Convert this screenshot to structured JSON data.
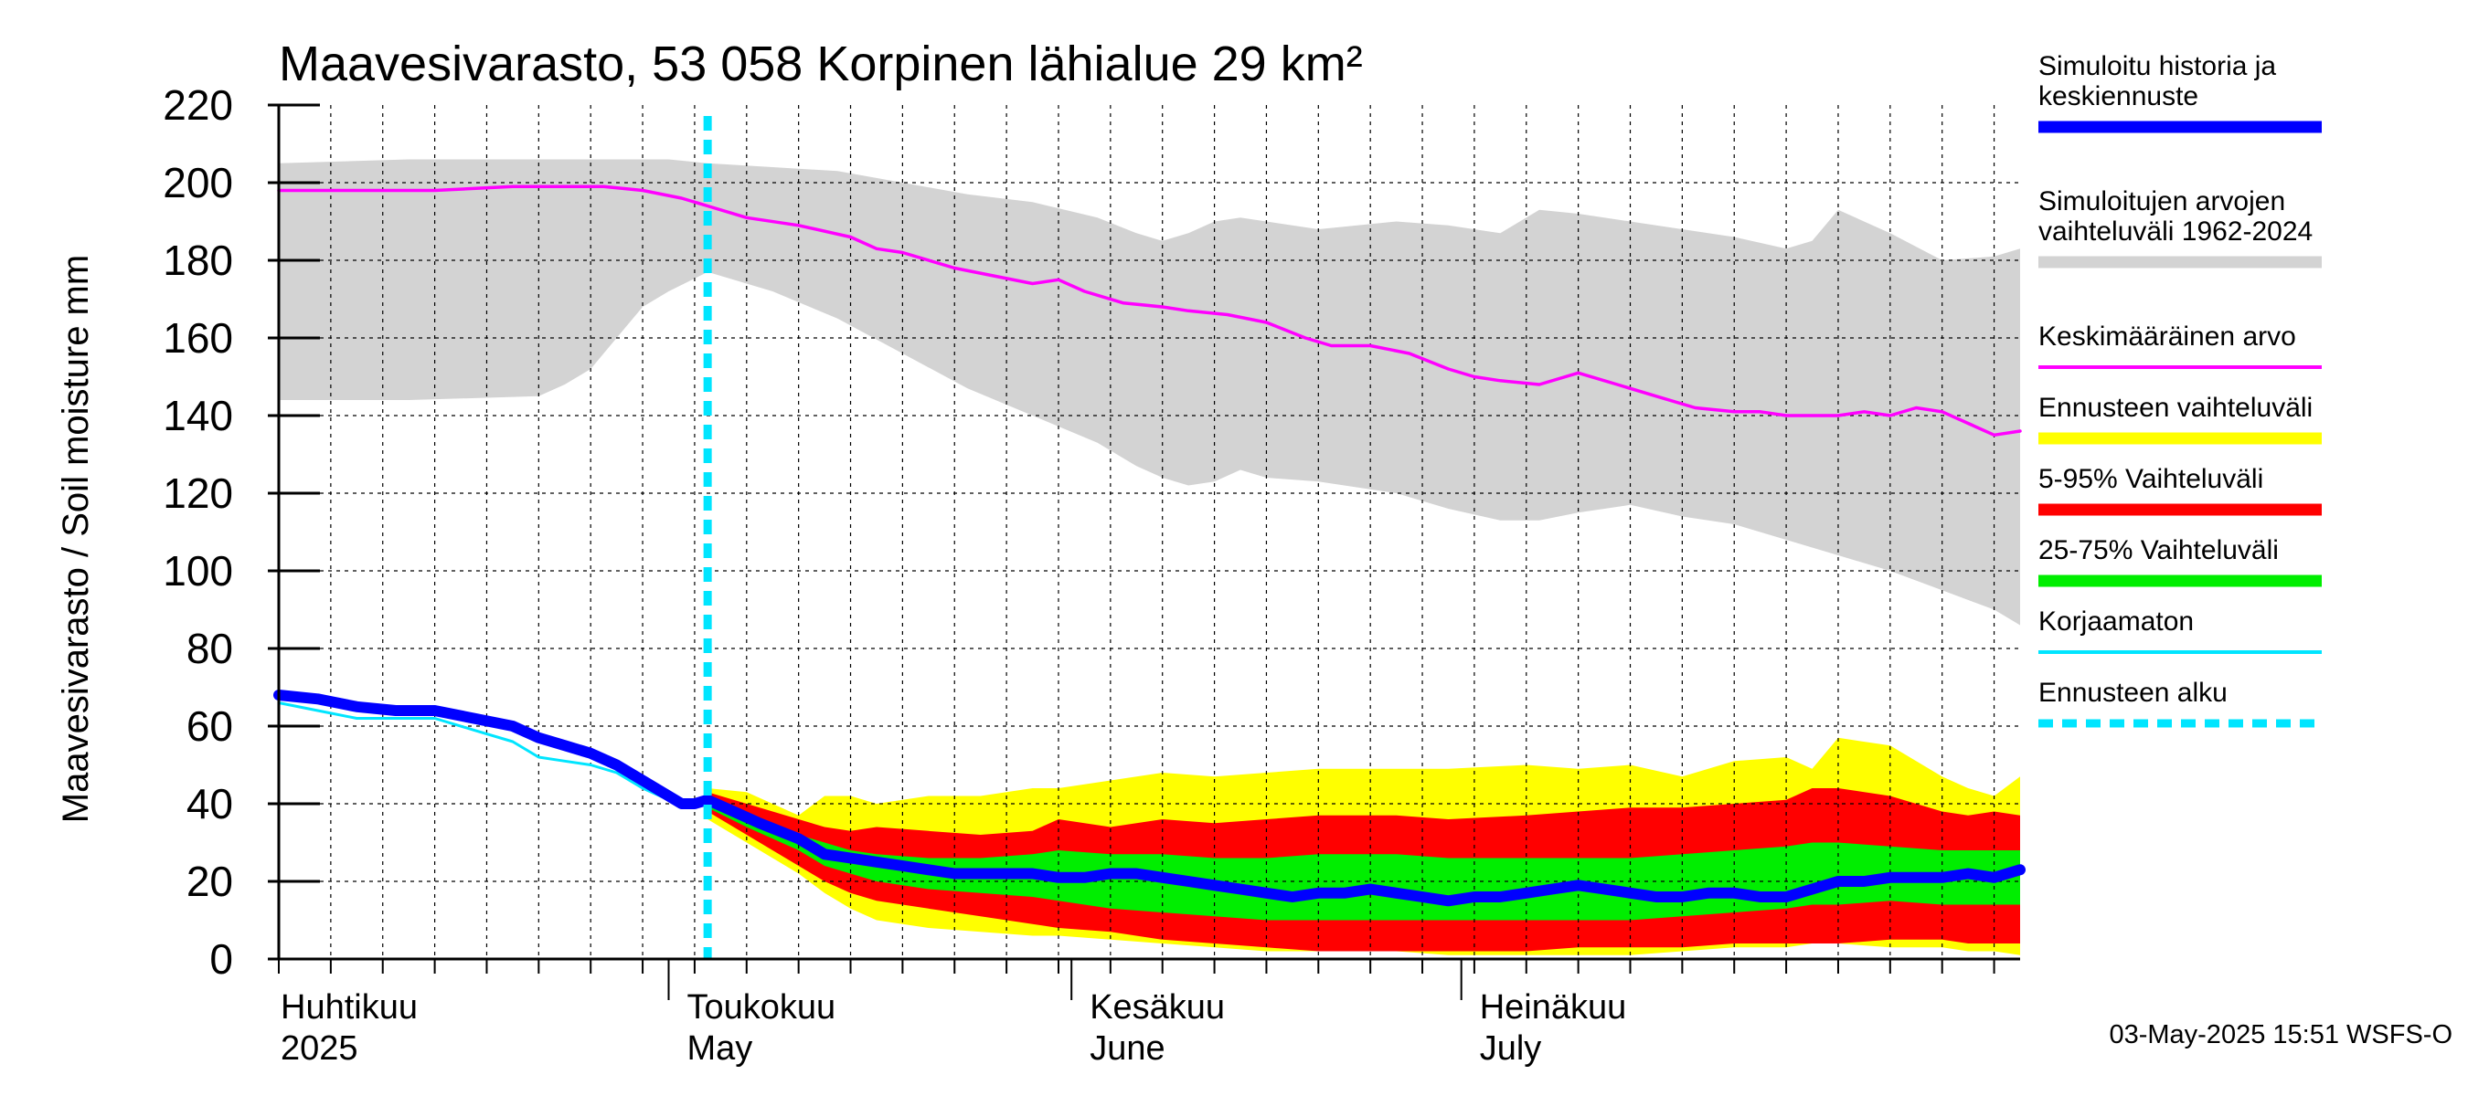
{
  "chart_data": {
    "type": "area",
    "title": "Maavesivarasto, 53 058 Korpinen lähialue 29 km²",
    "ylabel": "Maavesivarasto / Soil moisture   mm",
    "xlabel": "",
    "ylim": [
      0,
      220
    ],
    "yticks": [
      "0",
      "20",
      "40",
      "60",
      "80",
      "100",
      "120",
      "140",
      "160",
      "180",
      "200",
      "220"
    ],
    "xlim_days": [
      0,
      134
    ],
    "month_labels": [
      {
        "fi": "Huhtikuu",
        "en": "2025",
        "start_day": 0
      },
      {
        "fi": "Toukokuu",
        "en": "May",
        "start_day": 30
      },
      {
        "fi": "Kesäkuu",
        "en": "June",
        "start_day": 61
      },
      {
        "fi": "Heinäkuu",
        "en": "July",
        "start_day": 91
      }
    ],
    "forecast_start_day": 33,
    "series": [
      {
        "name": "Simuloitujen arvojen vaihteluväli 1962-2024",
        "kind": "band",
        "color": "#d3d3d3",
        "x": [
          0,
          10,
          20,
          22,
          24,
          26,
          28,
          30,
          33,
          38,
          43,
          48,
          53,
          58,
          63,
          66,
          68,
          70,
          72,
          74,
          76,
          80,
          86,
          90,
          94,
          97,
          100,
          104,
          108,
          112,
          116,
          118,
          120,
          124,
          128,
          132,
          134
        ],
        "upper": [
          205,
          206,
          206,
          206,
          206,
          206,
          206,
          206,
          205,
          204,
          203,
          200,
          197,
          195,
          191,
          187,
          185,
          187,
          190,
          191,
          190,
          188,
          190,
          189,
          187,
          193,
          192,
          190,
          188,
          186,
          183,
          185,
          193,
          187,
          180,
          181,
          183
        ],
        "lower": [
          144,
          144,
          145,
          148,
          152,
          160,
          168,
          172,
          177,
          172,
          165,
          156,
          147,
          140,
          133,
          127,
          124,
          122,
          123,
          126,
          124,
          123,
          120,
          116,
          113,
          113,
          115,
          117,
          114,
          112,
          108,
          106,
          104,
          100,
          95,
          90,
          86
        ]
      },
      {
        "name": "Ennusteen vaihteluväli",
        "kind": "band",
        "color": "#ffff00",
        "x": [
          33,
          36,
          40,
          42,
          44,
          46,
          50,
          54,
          58,
          60,
          64,
          68,
          72,
          76,
          80,
          86,
          90,
          96,
          100,
          104,
          108,
          112,
          116,
          118,
          120,
          124,
          128,
          130,
          132,
          134
        ],
        "upper": [
          44,
          43,
          37,
          42,
          42,
          40,
          42,
          42,
          44,
          44,
          46,
          48,
          47,
          48,
          49,
          49,
          49,
          50,
          49,
          50,
          47,
          51,
          52,
          49,
          57,
          55,
          47,
          44,
          42,
          47
        ],
        "lower": [
          36,
          30,
          22,
          17,
          13,
          10,
          8,
          7,
          6,
          6,
          5,
          4,
          3,
          2,
          2,
          2,
          1,
          1,
          1,
          1,
          2,
          3,
          3,
          4,
          4,
          3,
          3,
          2,
          2,
          1
        ]
      },
      {
        "name": "5-95% Vaihteluväli",
        "kind": "band",
        "color": "#ff0000",
        "x": [
          33,
          36,
          40,
          42,
          44,
          46,
          50,
          54,
          58,
          60,
          64,
          68,
          72,
          76,
          80,
          86,
          90,
          96,
          100,
          104,
          108,
          112,
          116,
          118,
          120,
          124,
          128,
          130,
          132,
          134
        ],
        "upper": [
          43,
          40,
          36,
          34,
          33,
          34,
          33,
          32,
          33,
          36,
          34,
          36,
          35,
          36,
          37,
          37,
          36,
          37,
          38,
          39,
          39,
          40,
          41,
          44,
          44,
          42,
          38,
          37,
          38,
          37
        ],
        "lower": [
          38,
          32,
          24,
          20,
          17,
          15,
          13,
          11,
          9,
          8,
          7,
          5,
          4,
          3,
          2,
          2,
          2,
          2,
          3,
          3,
          3,
          4,
          4,
          4,
          4,
          5,
          5,
          4,
          4,
          4
        ]
      },
      {
        "name": "25-75% Vaihteluväli",
        "kind": "band",
        "color": "#00ee00",
        "x": [
          33,
          36,
          40,
          42,
          44,
          46,
          50,
          54,
          58,
          60,
          64,
          68,
          72,
          76,
          80,
          86,
          90,
          96,
          100,
          104,
          108,
          112,
          116,
          118,
          120,
          124,
          128,
          130,
          132,
          134
        ],
        "upper": [
          41,
          37,
          32,
          30,
          28,
          27,
          26,
          26,
          27,
          28,
          27,
          27,
          26,
          26,
          27,
          27,
          26,
          26,
          26,
          26,
          27,
          28,
          29,
          30,
          30,
          29,
          28,
          28,
          28,
          28
        ],
        "lower": [
          39,
          34,
          28,
          24,
          22,
          20,
          18,
          17,
          16,
          15,
          13,
          12,
          11,
          10,
          10,
          10,
          10,
          10,
          10,
          10,
          11,
          12,
          13,
          14,
          14,
          15,
          14,
          14,
          14,
          14
        ]
      },
      {
        "name": "Keskimääräinen arvo",
        "kind": "line",
        "color": "#ff00ff",
        "x": [
          0,
          6,
          12,
          18,
          22,
          25,
          28,
          31,
          33,
          36,
          40,
          44,
          46,
          48,
          52,
          55,
          58,
          60,
          62,
          65,
          68,
          70,
          73,
          76,
          79,
          81,
          84,
          87,
          90,
          92,
          94,
          97,
          100,
          103,
          106,
          109,
          112,
          114,
          116,
          118,
          120,
          122,
          124,
          126,
          128,
          130,
          132,
          134
        ],
        "y": [
          198,
          198,
          198,
          199,
          199,
          199,
          198,
          196,
          194,
          191,
          189,
          186,
          183,
          182,
          178,
          176,
          174,
          175,
          172,
          169,
          168,
          167,
          166,
          164,
          160,
          158,
          158,
          156,
          152,
          150,
          149,
          148,
          151,
          148,
          145,
          142,
          141,
          141,
          140,
          140,
          140,
          141,
          140,
          142,
          141,
          138,
          135,
          136
        ]
      },
      {
        "name": "Korjaamaton",
        "kind": "line",
        "color": "#00e5ff",
        "x": [
          0,
          3,
          6,
          9,
          12,
          15,
          18,
          20,
          22,
          24,
          26,
          28,
          30,
          31,
          32,
          33,
          35,
          37,
          40,
          42,
          44,
          46,
          48,
          50,
          52,
          54,
          56,
          58,
          60,
          62,
          64,
          66,
          68,
          70,
          72,
          74,
          76,
          78,
          80,
          82,
          84,
          86,
          88,
          90,
          92,
          94,
          96,
          98,
          100,
          102,
          104,
          106,
          108,
          110,
          112,
          114,
          116,
          118,
          120,
          122,
          124,
          126,
          128,
          130,
          132,
          134
        ],
        "y": [
          66,
          64,
          62,
          62,
          62,
          59,
          56,
          52,
          51,
          50,
          48,
          44,
          41,
          39,
          40,
          41,
          38,
          35,
          30,
          27,
          25,
          25,
          24,
          23,
          22,
          22,
          22,
          22,
          21,
          21,
          22,
          22,
          21,
          20,
          19,
          18,
          17,
          16,
          16,
          17,
          18,
          17,
          16,
          15,
          15,
          16,
          16,
          17,
          18,
          17,
          16,
          16,
          16,
          16,
          16,
          16,
          16,
          18,
          19,
          20,
          20,
          21,
          21,
          22,
          21,
          22
        ]
      },
      {
        "name": "Simuloitu historia ja keskiennuste",
        "kind": "line",
        "color": "#0000ff",
        "x": [
          0,
          3,
          6,
          9,
          12,
          15,
          18,
          20,
          22,
          24,
          26,
          28,
          30,
          31,
          32,
          33,
          35,
          37,
          40,
          42,
          44,
          46,
          48,
          50,
          52,
          54,
          56,
          58,
          60,
          62,
          64,
          66,
          68,
          70,
          72,
          74,
          76,
          78,
          80,
          82,
          84,
          86,
          88,
          90,
          92,
          94,
          96,
          98,
          100,
          102,
          104,
          106,
          108,
          110,
          112,
          114,
          116,
          118,
          120,
          122,
          124,
          126,
          128,
          130,
          132,
          134
        ],
        "y": [
          68,
          67,
          65,
          64,
          64,
          62,
          60,
          57,
          55,
          53,
          50,
          46,
          42,
          40,
          40,
          41,
          38,
          35,
          31,
          27,
          26,
          25,
          24,
          23,
          22,
          22,
          22,
          22,
          21,
          21,
          22,
          22,
          21,
          20,
          19,
          18,
          17,
          16,
          17,
          17,
          18,
          17,
          16,
          15,
          16,
          16,
          17,
          18,
          19,
          18,
          17,
          16,
          16,
          17,
          17,
          16,
          16,
          18,
          20,
          20,
          21,
          21,
          21,
          22,
          21,
          23
        ]
      }
    ],
    "legend": [
      {
        "label": "Simuloitu historia ja keskiennuste",
        "color": "#0000ff",
        "style": "thick"
      },
      {
        "label": "Simuloitujen arvojen vaihteluväli 1962-2024",
        "color": "#d3d3d3",
        "style": "thick"
      },
      {
        "label": "Keskimääräinen arvo",
        "color": "#ff00ff",
        "style": "thin"
      },
      {
        "label": "Ennusteen vaihteluväli",
        "color": "#ffff00",
        "style": "thick"
      },
      {
        "label": "5-95% Vaihteluväli",
        "color": "#ff0000",
        "style": "thick"
      },
      {
        "label": "25-75% Vaihteluväli",
        "color": "#00ee00",
        "style": "thick"
      },
      {
        "label": "Korjaamaton",
        "color": "#00e5ff",
        "style": "thin"
      },
      {
        "label": "Ennusteen alku",
        "color": "#00e5ff",
        "style": "dashed"
      }
    ],
    "footer": "03-May-2025 15:51 WSFS-O"
  }
}
